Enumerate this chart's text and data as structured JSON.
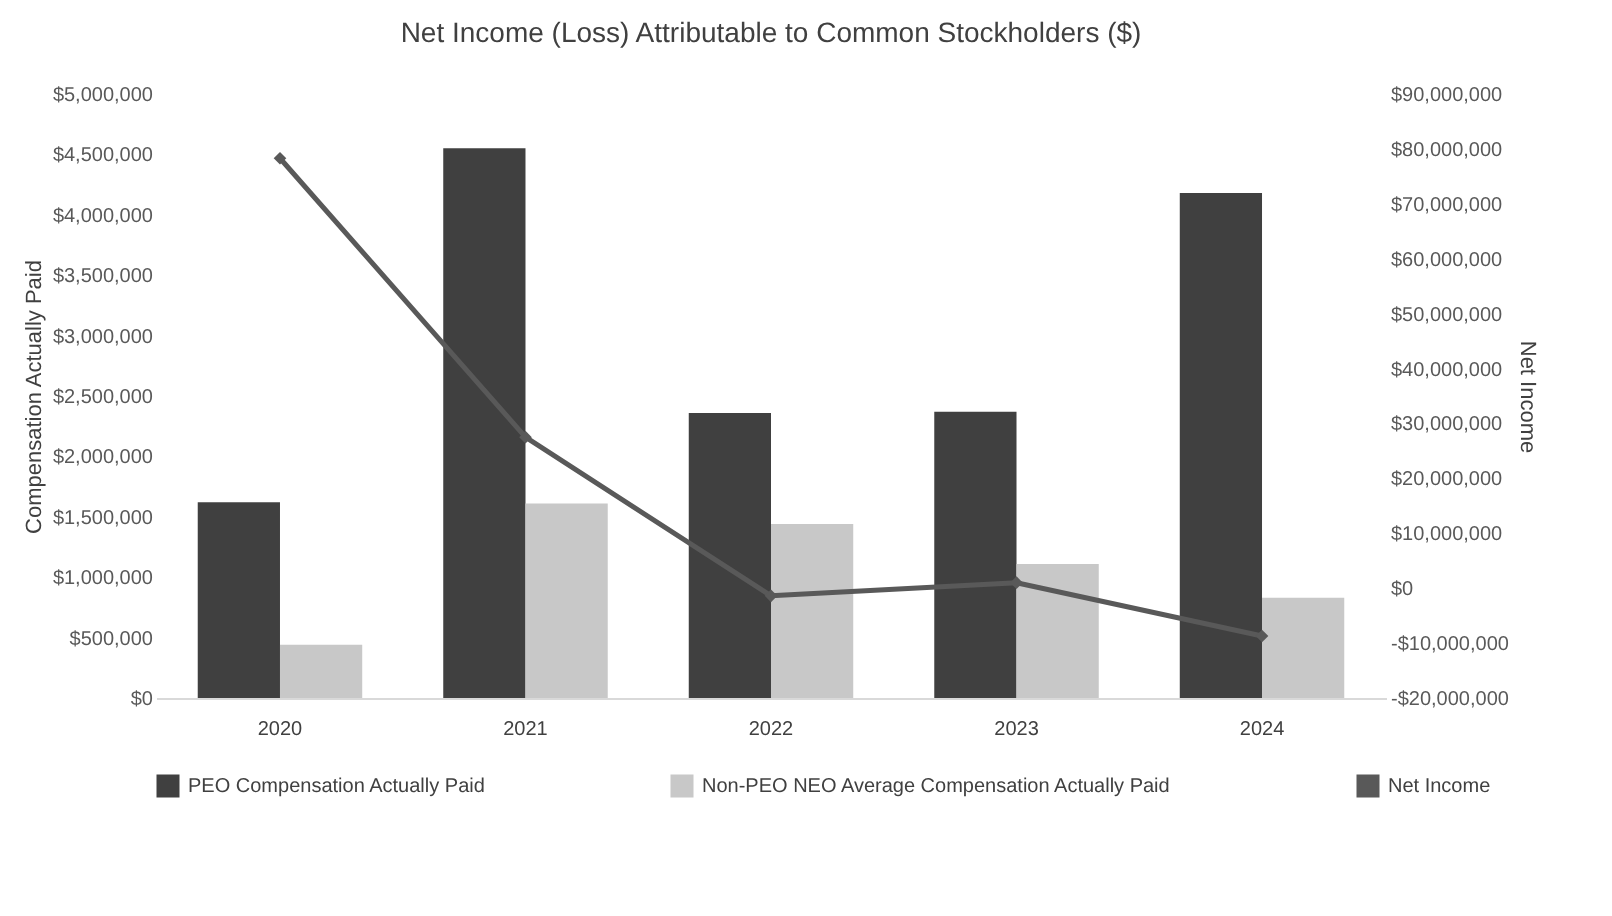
{
  "chart_data": {
    "type": "bar",
    "title": "Net Income (Loss) Attributable to Common Stockholders  ($)",
    "ylabel": "Compensation Actually Paid",
    "y2label": "Net Income",
    "categories": [
      "2020",
      "2021",
      "2022",
      "2023",
      "2024"
    ],
    "series": [
      {
        "name": "PEO Compensation Actually Paid",
        "color": "#404040",
        "values": [
          1620000,
          4550000,
          2360000,
          2370000,
          4180000
        ]
      },
      {
        "name": "Non-PEO NEO Average Compensation Actually Paid",
        "color": "#c8c8c8",
        "values": [
          440000,
          1610000,
          1440000,
          1110000,
          830000
        ]
      },
      {
        "name": "Net Income",
        "type": "line",
        "axis": "y2",
        "color": "#595959",
        "marker": "diamond",
        "values": [
          78300000,
          27500000,
          -1400000,
          1000000,
          -8700000
        ]
      }
    ],
    "ylim": [
      0,
      5000000
    ],
    "yticks": [
      {
        "value": 0,
        "label": "$0"
      },
      {
        "value": 500000,
        "label": "$500,000"
      },
      {
        "value": 1000000,
        "label": "$1,000,000"
      },
      {
        "value": 1500000,
        "label": "$1,500,000"
      },
      {
        "value": 2000000,
        "label": "$2,000,000"
      },
      {
        "value": 2500000,
        "label": "$2,500,000"
      },
      {
        "value": 3000000,
        "label": "$3,000,000"
      },
      {
        "value": 3500000,
        "label": "$3,500,000"
      },
      {
        "value": 4000000,
        "label": "$4,000,000"
      },
      {
        "value": 4500000,
        "label": "$4,500,000"
      },
      {
        "value": 5000000,
        "label": "$5,000,000"
      }
    ],
    "y2lim": [
      -20000000,
      90000000
    ],
    "y2ticks": [
      {
        "value": -20000000,
        "label": "-$20,000,000"
      },
      {
        "value": -10000000,
        "label": "-$10,000,000"
      },
      {
        "value": 0,
        "label": "$0"
      },
      {
        "value": 10000000,
        "label": "$10,000,000"
      },
      {
        "value": 20000000,
        "label": "$20,000,000"
      },
      {
        "value": 30000000,
        "label": "$30,000,000"
      },
      {
        "value": 40000000,
        "label": "$40,000,000"
      },
      {
        "value": 50000000,
        "label": "$50,000,000"
      },
      {
        "value": 60000000,
        "label": "$60,000,000"
      },
      {
        "value": 70000000,
        "label": "$70,000,000"
      },
      {
        "value": 80000000,
        "label": "$80,000,000"
      },
      {
        "value": 90000000,
        "label": "$90,000,000"
      }
    ],
    "grid": false,
    "legend": "bottom"
  }
}
